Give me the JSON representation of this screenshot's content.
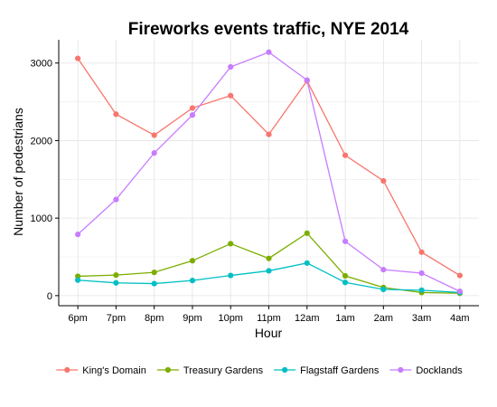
{
  "chart_data": {
    "type": "line",
    "title": "Fireworks events traffic, NYE 2014",
    "xlabel": "Hour",
    "ylabel": "Number of pedestrians",
    "categories": [
      "6pm",
      "7pm",
      "8pm",
      "9pm",
      "10pm",
      "11pm",
      "12am",
      "1am",
      "2am",
      "3am",
      "4am"
    ],
    "ylim": [
      -130,
      3300
    ],
    "yticks": [
      0,
      1000,
      2000,
      3000
    ],
    "yticks_labels": [
      "0",
      "1000",
      "2000",
      "3000"
    ],
    "grid": true,
    "legend_position": "bottom",
    "series": [
      {
        "name": "King's Domain",
        "color": "#F8766D",
        "values": [
          3060,
          2340,
          2070,
          2420,
          2580,
          2080,
          2770,
          1810,
          1480,
          560,
          260
        ]
      },
      {
        "name": "Treasury Gardens",
        "color": "#7CAE00",
        "values": [
          250,
          265,
          300,
          450,
          670,
          480,
          805,
          255,
          105,
          40,
          30
        ]
      },
      {
        "name": "Flagstaff Gardens",
        "color": "#00BFC4",
        "values": [
          200,
          165,
          155,
          195,
          260,
          320,
          420,
          170,
          80,
          70,
          40
        ]
      },
      {
        "name": "Docklands",
        "color": "#C77CFF",
        "values": [
          790,
          1240,
          1840,
          2330,
          2950,
          3140,
          2780,
          700,
          335,
          290,
          55
        ]
      }
    ]
  }
}
